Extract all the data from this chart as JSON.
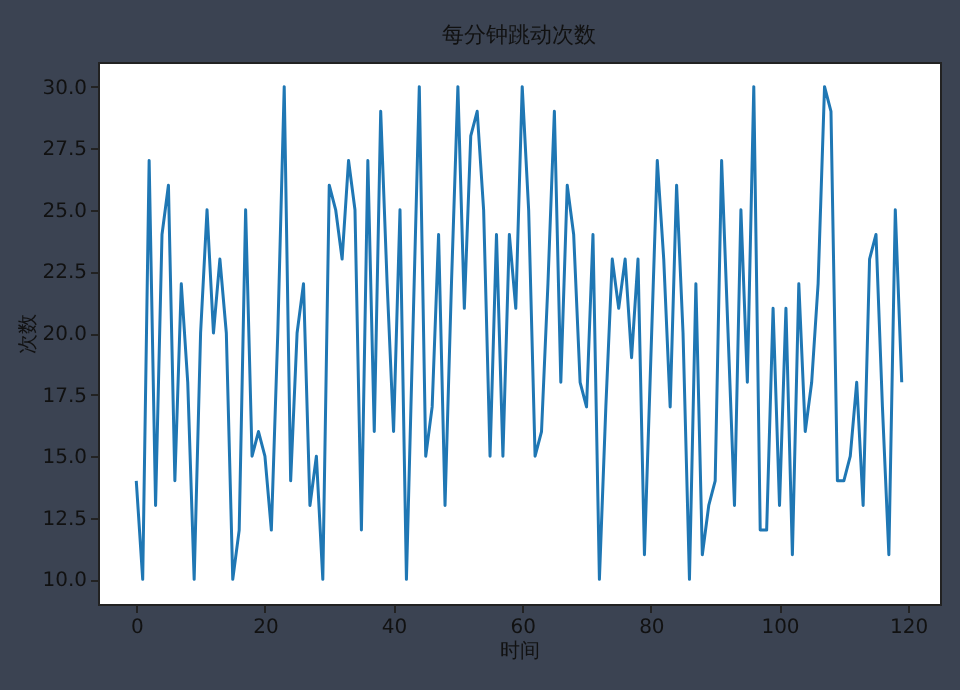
{
  "chart_data": {
    "type": "line",
    "title": "每分钟跳动次数",
    "xlabel": "时间",
    "ylabel": "次数",
    "x": [
      0,
      1,
      2,
      3,
      4,
      5,
      6,
      7,
      8,
      9,
      10,
      11,
      12,
      13,
      14,
      15,
      16,
      17,
      18,
      19,
      20,
      21,
      22,
      23,
      24,
      25,
      26,
      27,
      28,
      29,
      30,
      31,
      32,
      33,
      34,
      35,
      36,
      37,
      38,
      39,
      40,
      41,
      42,
      43,
      44,
      45,
      46,
      47,
      48,
      49,
      50,
      51,
      52,
      53,
      54,
      55,
      56,
      57,
      58,
      59,
      60,
      61,
      62,
      63,
      64,
      65,
      66,
      67,
      68,
      69,
      70,
      71,
      72,
      73,
      74,
      75,
      76,
      77,
      78,
      79,
      80,
      81,
      82,
      83,
      84,
      85,
      86,
      87,
      88,
      89,
      90,
      91,
      92,
      93,
      94,
      95,
      96,
      97,
      98,
      99,
      100,
      101,
      102,
      103,
      104,
      105,
      106,
      107,
      108,
      109,
      110,
      111,
      112,
      113,
      114,
      115,
      116,
      117,
      118,
      119
    ],
    "series": [
      {
        "color": "#1f77b4",
        "values": [
          14,
          10,
          27,
          13,
          24,
          26,
          14,
          22,
          18,
          10,
          20,
          25,
          20,
          23,
          20,
          10,
          12,
          25,
          15,
          16,
          15,
          12,
          20,
          30,
          14,
          20,
          22,
          13,
          15,
          10,
          26,
          25,
          23,
          27,
          25,
          12,
          27,
          16,
          29,
          22,
          16,
          25,
          10,
          20,
          30,
          15,
          17,
          24,
          13,
          22,
          30,
          21,
          28,
          29,
          25,
          15,
          24,
          15,
          24,
          21,
          30,
          25,
          15,
          16,
          22,
          29,
          18,
          26,
          24,
          18,
          17,
          24,
          10,
          17,
          23,
          21,
          23,
          19,
          23,
          11,
          19,
          27,
          23,
          17,
          26,
          20,
          10,
          22,
          11,
          13,
          14,
          27,
          20,
          13,
          25,
          18,
          30,
          12,
          12,
          21,
          13,
          21,
          11,
          22,
          16,
          18,
          22,
          30,
          29,
          14,
          14,
          15,
          18,
          13,
          23,
          24,
          17,
          11,
          25,
          18
        ]
      }
    ],
    "xlim": [
      -5.95,
      124.95
    ],
    "ylim": [
      9,
      31
    ],
    "xticks": [
      0,
      20,
      40,
      60,
      80,
      100,
      120
    ],
    "yticks": [
      {
        "value": 10,
        "label": "10.0"
      },
      {
        "value": 12.5,
        "label": "12.5"
      },
      {
        "value": 15,
        "label": "15.0"
      },
      {
        "value": 17.5,
        "label": "17.5"
      },
      {
        "value": 20,
        "label": "20.0"
      },
      {
        "value": 22.5,
        "label": "22.5"
      },
      {
        "value": 25,
        "label": "25.0"
      },
      {
        "value": 27.5,
        "label": "27.5"
      },
      {
        "value": 30,
        "label": "30.0"
      }
    ],
    "grid": false,
    "marker": "none",
    "line_style": "solid"
  }
}
